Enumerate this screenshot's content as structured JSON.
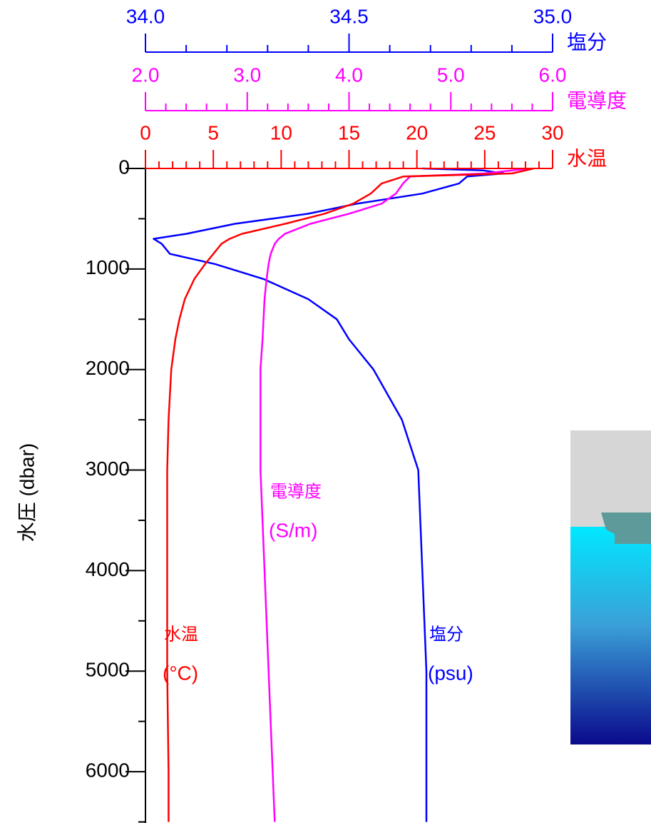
{
  "chart_data": {
    "type": "profile",
    "y_label": "水圧 (dbar)",
    "ylim": [
      0,
      6500
    ],
    "yticks": [
      0,
      1000,
      2000,
      3000,
      4000,
      5000,
      6000
    ],
    "yminorticks": [
      500,
      1500,
      2500,
      3500,
      4500,
      5500,
      6500
    ],
    "y": [
      0,
      20,
      50,
      80,
      150,
      250,
      350,
      450,
      550,
      650,
      700,
      750,
      850,
      950,
      1100,
      1300,
      1500,
      1700,
      2000,
      2500,
      3000,
      4000,
      5000,
      6000,
      6500
    ],
    "series": [
      {
        "name": "塩分",
        "color": "#0000ff",
        "annotation": [
          "塩分",
          "(psu)"
        ],
        "xlim": [
          34.0,
          35.0
        ],
        "xticks": [
          {
            "value": 34.0,
            "label": "34.0"
          },
          {
            "value": 34.5,
            "label": "34.5"
          },
          {
            "value": 35.0,
            "label": "35.0"
          }
        ],
        "xminorticks": [
          34.1,
          34.2,
          34.3,
          34.4,
          34.6,
          34.7,
          34.8,
          34.9
        ],
        "values": [
          34.68,
          34.83,
          34.88,
          34.79,
          34.77,
          34.68,
          34.52,
          34.4,
          34.22,
          34.1,
          34.02,
          34.04,
          34.06,
          34.17,
          34.29,
          34.4,
          34.47,
          34.5,
          34.56,
          34.63,
          34.67,
          34.68,
          34.69,
          34.69,
          34.69
        ]
      },
      {
        "name": "電導度",
        "color": "#ff00ff",
        "annotation": [
          "電導度",
          "(S/m)"
        ],
        "xlim": [
          2.0,
          6.0
        ],
        "xticks": [
          {
            "value": 2.0,
            "label": "2.0"
          },
          {
            "value": 3.0,
            "label": "3.0"
          },
          {
            "value": 4.0,
            "label": "4.0"
          },
          {
            "value": 5.0,
            "label": "5.0"
          },
          {
            "value": 6.0,
            "label": "6.0"
          }
        ],
        "xminorticks": [
          2.2,
          2.4,
          2.6,
          2.8,
          3.2,
          3.4,
          3.6,
          3.8,
          4.2,
          4.4,
          4.6,
          4.8,
          5.2,
          5.4,
          5.6,
          5.8
        ],
        "values": [
          5.79,
          5.6,
          5.33,
          4.6,
          4.53,
          4.46,
          4.32,
          4.0,
          3.62,
          3.37,
          3.31,
          3.27,
          3.23,
          3.21,
          3.19,
          3.17,
          3.16,
          3.15,
          3.13,
          3.13,
          3.13,
          3.17,
          3.21,
          3.25,
          3.27
        ]
      },
      {
        "name": "水温",
        "color": "#ff0000",
        "annotation": [
          "水温",
          "(°C)"
        ],
        "xlim": [
          0,
          30
        ],
        "xticks": [
          0,
          5,
          10,
          15,
          20,
          25,
          30
        ],
        "xminorticks": [
          1,
          2,
          3,
          4,
          6,
          7,
          8,
          9,
          11,
          12,
          13,
          14,
          16,
          17,
          18,
          19,
          21,
          22,
          23,
          24,
          26,
          27,
          28,
          29
        ],
        "values": [
          28.6,
          28.0,
          27.0,
          19.0,
          17.4,
          16.6,
          15.3,
          13.2,
          10.3,
          7.1,
          6.2,
          5.6,
          5.0,
          4.4,
          3.6,
          2.9,
          2.5,
          2.2,
          1.9,
          1.7,
          1.6,
          1.6,
          1.6,
          1.7,
          1.7
        ]
      }
    ]
  }
}
